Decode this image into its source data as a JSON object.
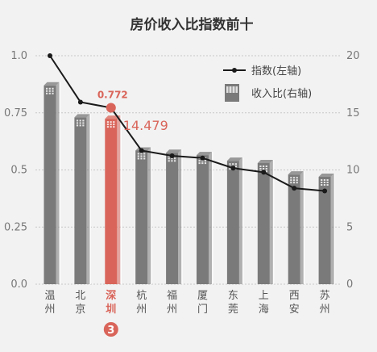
{
  "chart_data": {
    "type": "bar+line",
    "title": "房价收入比指数前十",
    "categories": [
      "温州",
      "北京",
      "深圳",
      "杭州",
      "福州",
      "厦门",
      "东莞",
      "上海",
      "西安",
      "苏州"
    ],
    "left_axis": {
      "ticks": [
        "0.0",
        "0.25",
        "0.5",
        "0.75",
        "1.0"
      ],
      "range": [
        0,
        1.0
      ]
    },
    "right_axis": {
      "ticks": [
        "0",
        "5",
        "10",
        "15",
        "20"
      ],
      "range": [
        0,
        20
      ]
    },
    "series": [
      {
        "name": "指数(左轴)",
        "type": "line",
        "axis": "left",
        "values": [
          1.0,
          0.797,
          0.772,
          0.585,
          0.562,
          0.552,
          0.508,
          0.49,
          0.42,
          0.408
        ]
      },
      {
        "name": "收入比(右轴)",
        "type": "bar",
        "axis": "right",
        "values": [
          17.4,
          14.6,
          14.479,
          11.7,
          11.5,
          11.3,
          10.8,
          10.6,
          9.6,
          9.4
        ]
      }
    ],
    "highlight": {
      "category": "深圳",
      "index_label": "0.772",
      "ratio_label": "14.479",
      "rank": "3",
      "color": "#d9655a"
    },
    "colors": {
      "bar": "#7a7a7a",
      "bar_highlight": "#d9655a",
      "line": "#1a1a1a",
      "grid": "#c8c8c8",
      "axis_text": "#777777"
    },
    "grid": true,
    "legend_position": "top-right"
  }
}
